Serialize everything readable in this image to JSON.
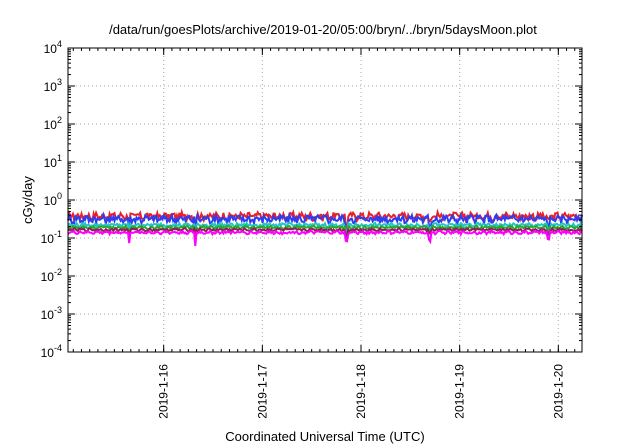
{
  "chart_data": {
    "type": "line",
    "title": "/data/run/goesPlots/archive/2019-01-20/05:00/bryn/../bryn/5daysMoon.plot",
    "xlabel": "Coordinated Universal Time (UTC)",
    "ylabel": "cGy/day",
    "y_scale": "log",
    "ylim": [
      0.0001,
      10000
    ],
    "y_ticks": [
      {
        "base": "10",
        "exp": "4",
        "value": 10000
      },
      {
        "base": "10",
        "exp": "3",
        "value": 1000
      },
      {
        "base": "10",
        "exp": "2",
        "value": 100
      },
      {
        "base": "10",
        "exp": "1",
        "value": 10
      },
      {
        "base": "10",
        "exp": "0",
        "value": 1
      },
      {
        "base": "10",
        "exp": "-1",
        "value": 0.1
      },
      {
        "base": "10",
        "exp": "-2",
        "value": 0.01
      },
      {
        "base": "10",
        "exp": "-3",
        "value": 0.001
      },
      {
        "base": "10",
        "exp": "-4",
        "value": 0.0001
      }
    ],
    "xlim": [
      -0.97,
      4.24
    ],
    "x_tick_labels": [
      "2019-1-16",
      "2019-1-17",
      "2019-1-18",
      "2019-1-19",
      "2019-1-20"
    ],
    "x_tick_values": [
      0,
      1,
      2,
      3,
      4
    ],
    "grid": true,
    "series": [
      {
        "color": "#e8202a",
        "level": 0.38,
        "jitter": 0.2,
        "dips": [
          [
            -0.35,
            0.45
          ],
          [
            0.32,
            0.5
          ],
          [
            1.85,
            0.55
          ],
          [
            2.7,
            0.7
          ],
          [
            3.9,
            0.7
          ]
        ]
      },
      {
        "color": "#2f3cf0",
        "level": 0.32,
        "jitter": 0.22,
        "dips": [
          [
            -0.35,
            0.35
          ],
          [
            0.32,
            0.4
          ],
          [
            1.85,
            0.45
          ],
          [
            2.7,
            0.6
          ],
          [
            3.9,
            0.6
          ]
        ]
      },
      {
        "color": "#22c5c5",
        "level": 0.22,
        "jitter": 0.1,
        "dips": [
          [
            -0.35,
            0.6
          ],
          [
            0.32,
            0.6
          ],
          [
            1.85,
            0.65
          ],
          [
            2.7,
            0.8
          ],
          [
            3.9,
            0.8
          ]
        ]
      },
      {
        "color": "#2aa82a",
        "level": 0.19,
        "jitter": 0.08,
        "dips": [
          [
            -0.35,
            0.6
          ],
          [
            0.32,
            0.6
          ],
          [
            1.85,
            0.65
          ],
          [
            2.7,
            0.8
          ],
          [
            3.9,
            0.8
          ]
        ]
      },
      {
        "color": "#8b2252",
        "level": 0.165,
        "jitter": 0.07,
        "dips": [
          [
            -0.35,
            0.6
          ],
          [
            0.32,
            0.6
          ],
          [
            1.85,
            0.65
          ],
          [
            2.7,
            0.8
          ],
          [
            3.9,
            0.8
          ]
        ]
      },
      {
        "color": "#ff00ff",
        "level": 0.14,
        "jitter": 0.08,
        "dips": [
          [
            -0.35,
            0.5
          ],
          [
            0.32,
            0.45
          ],
          [
            1.85,
            0.55
          ],
          [
            2.7,
            0.6
          ],
          [
            3.9,
            0.65
          ]
        ]
      }
    ]
  }
}
